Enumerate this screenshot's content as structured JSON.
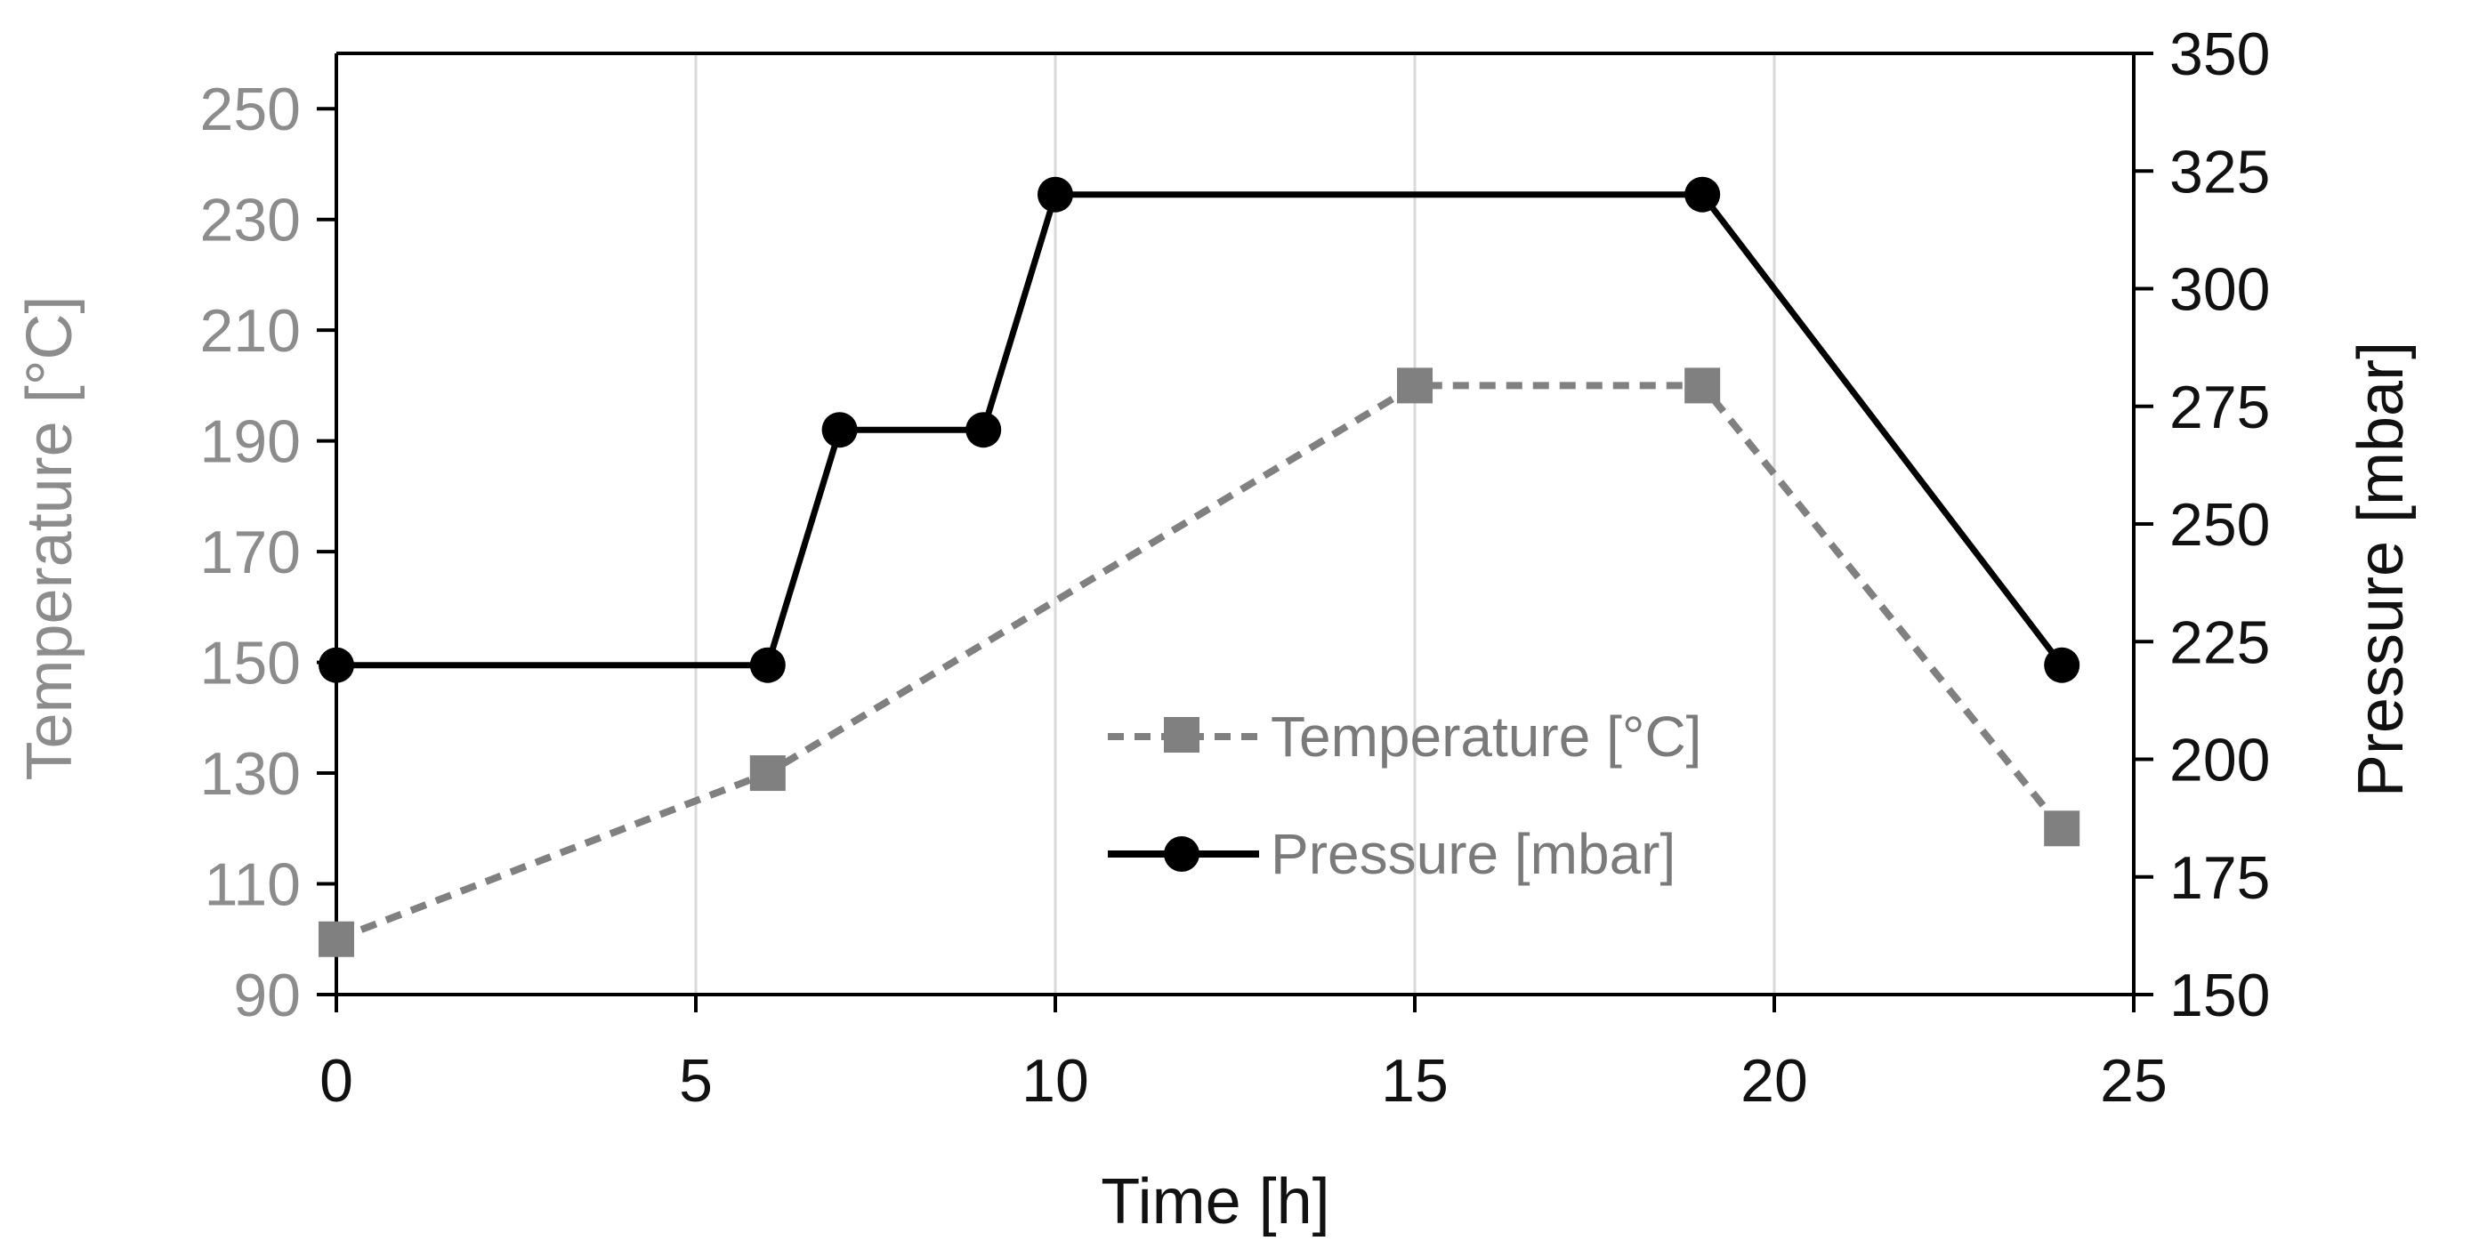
{
  "chart_data": {
    "type": "line",
    "title": "",
    "xlabel": "Time [h]",
    "ylabel_left": "Temperature [°C]",
    "ylabel_right": "Pressure [mbar]",
    "xlim": [
      0,
      25
    ],
    "ylim_left": [
      90,
      260
    ],
    "ylim_right": [
      150,
      350
    ],
    "x_ticks": [
      "0",
      "5",
      "10",
      "15",
      "20",
      "25"
    ],
    "y_ticks_left": [
      "90",
      "110",
      "130",
      "150",
      "170",
      "190",
      "210",
      "230",
      "250"
    ],
    "y_ticks_right": [
      "150",
      "175",
      "200",
      "225",
      "250",
      "275",
      "300",
      "325",
      "350"
    ],
    "grid": "vertical",
    "legend_position": "center-right",
    "series": [
      {
        "name": "Temperature [°C]",
        "axis": "left",
        "style": "dashed",
        "marker": "square",
        "color": "#808080",
        "x": [
          0,
          6,
          15,
          19,
          24
        ],
        "y": [
          100,
          130,
          200,
          200,
          120
        ]
      },
      {
        "name": "Pressure [mbar]",
        "axis": "right",
        "style": "solid",
        "marker": "circle",
        "color": "#000000",
        "x": [
          0,
          6,
          7,
          9,
          10,
          19,
          24
        ],
        "y": [
          220,
          220,
          270,
          270,
          320,
          320,
          220
        ]
      }
    ]
  }
}
